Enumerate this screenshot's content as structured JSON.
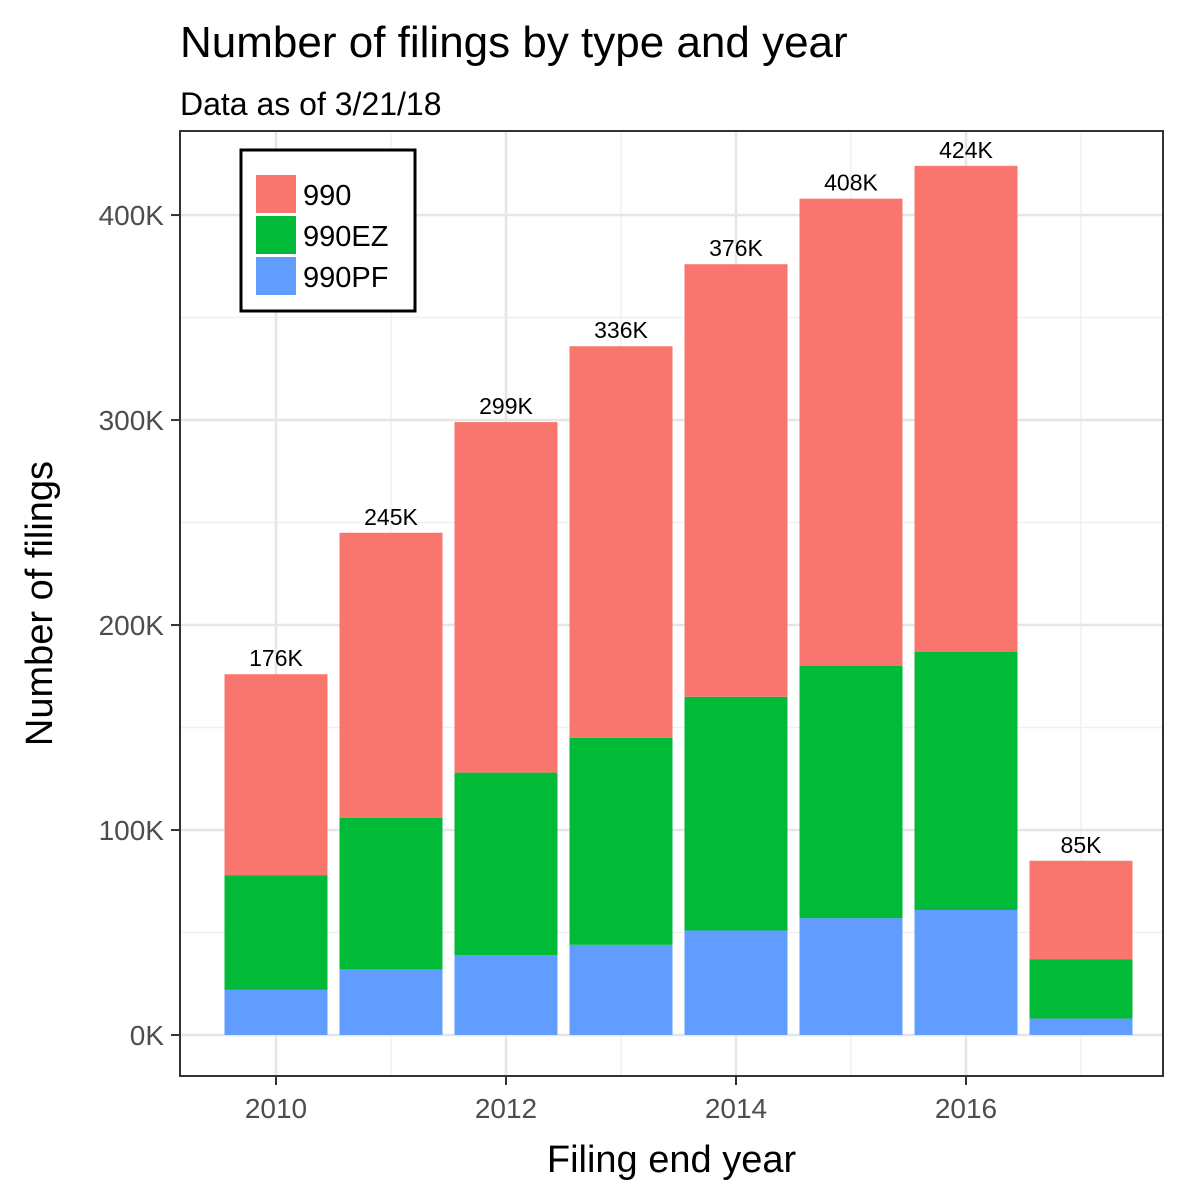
{
  "chart_data": {
    "type": "bar",
    "stacked": true,
    "title": "Number of filings by type and year",
    "subtitle": "Data as of 3/21/18",
    "xlabel": "Filing end year",
    "ylabel": "Number of filings",
    "categories": [
      "2010",
      "2011",
      "2012",
      "2013",
      "2014",
      "2015",
      "2016",
      "2017"
    ],
    "x_ticks": [
      "2010",
      "2012",
      "2014",
      "2016"
    ],
    "y_ticks": [
      0,
      100000,
      200000,
      300000,
      400000
    ],
    "y_tick_labels": [
      "0K",
      "100K",
      "200K",
      "300K",
      "400K"
    ],
    "ylim": [
      -20000,
      441000
    ],
    "grid": true,
    "legend_position": "top-left",
    "series": [
      {
        "name": "990PF",
        "color": "#619CFF",
        "values": [
          22000,
          32000,
          39000,
          44000,
          51000,
          57000,
          61000,
          8000
        ]
      },
      {
        "name": "990EZ",
        "color": "#00BA38",
        "values": [
          56000,
          74000,
          89000,
          101000,
          114000,
          123000,
          126000,
          29000
        ]
      },
      {
        "name": "990",
        "color": "#F8766D",
        "values": [
          98000,
          139000,
          171000,
          191000,
          211000,
          228000,
          237000,
          48000
        ]
      }
    ],
    "total_labels": [
      "176K",
      "245K",
      "299K",
      "336K",
      "376K",
      "408K",
      "424K",
      "85K"
    ],
    "legend_order": [
      "990",
      "990EZ",
      "990PF"
    ]
  }
}
